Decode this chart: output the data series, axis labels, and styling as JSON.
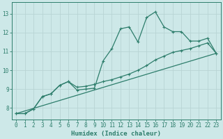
{
  "xlabel": "Humidex (Indice chaleur)",
  "bg_color": "#cde8e8",
  "line_color": "#2d7d6b",
  "grid_color": "#b8d4d4",
  "xlim": [
    -0.5,
    23.5
  ],
  "ylim": [
    7.4,
    13.6
  ],
  "xticks": [
    0,
    1,
    2,
    3,
    4,
    5,
    6,
    7,
    8,
    9,
    10,
    11,
    12,
    13,
    14,
    15,
    16,
    17,
    18,
    19,
    20,
    21,
    22,
    23
  ],
  "yticks": [
    8,
    9,
    10,
    11,
    12,
    13
  ],
  "series1_x": [
    0,
    1,
    2,
    3,
    4,
    5,
    6,
    7,
    8,
    9,
    10,
    11,
    12,
    13,
    14,
    15,
    16,
    17,
    18,
    19,
    20,
    21,
    22,
    23
  ],
  "series1_y": [
    7.7,
    7.7,
    7.95,
    8.6,
    8.75,
    9.2,
    9.4,
    8.95,
    9.0,
    9.05,
    10.5,
    11.15,
    12.2,
    12.3,
    11.5,
    12.8,
    13.1,
    12.3,
    12.05,
    12.05,
    11.55,
    11.55,
    11.7,
    10.9
  ],
  "series2_x": [
    0,
    1,
    2,
    3,
    4,
    5,
    6,
    7,
    8,
    9,
    10,
    11,
    12,
    13,
    14,
    15,
    16,
    17,
    18,
    19,
    20,
    21,
    22,
    23
  ],
  "series2_y": [
    7.7,
    7.7,
    7.95,
    8.6,
    8.75,
    9.2,
    9.4,
    9.1,
    9.15,
    9.25,
    9.4,
    9.5,
    9.65,
    9.8,
    10.0,
    10.25,
    10.55,
    10.75,
    10.95,
    11.05,
    11.15,
    11.3,
    11.45,
    10.9
  ],
  "series3_x": [
    0,
    23
  ],
  "series3_y": [
    7.7,
    10.9
  ],
  "markersize": 3.5,
  "linewidth": 0.9
}
